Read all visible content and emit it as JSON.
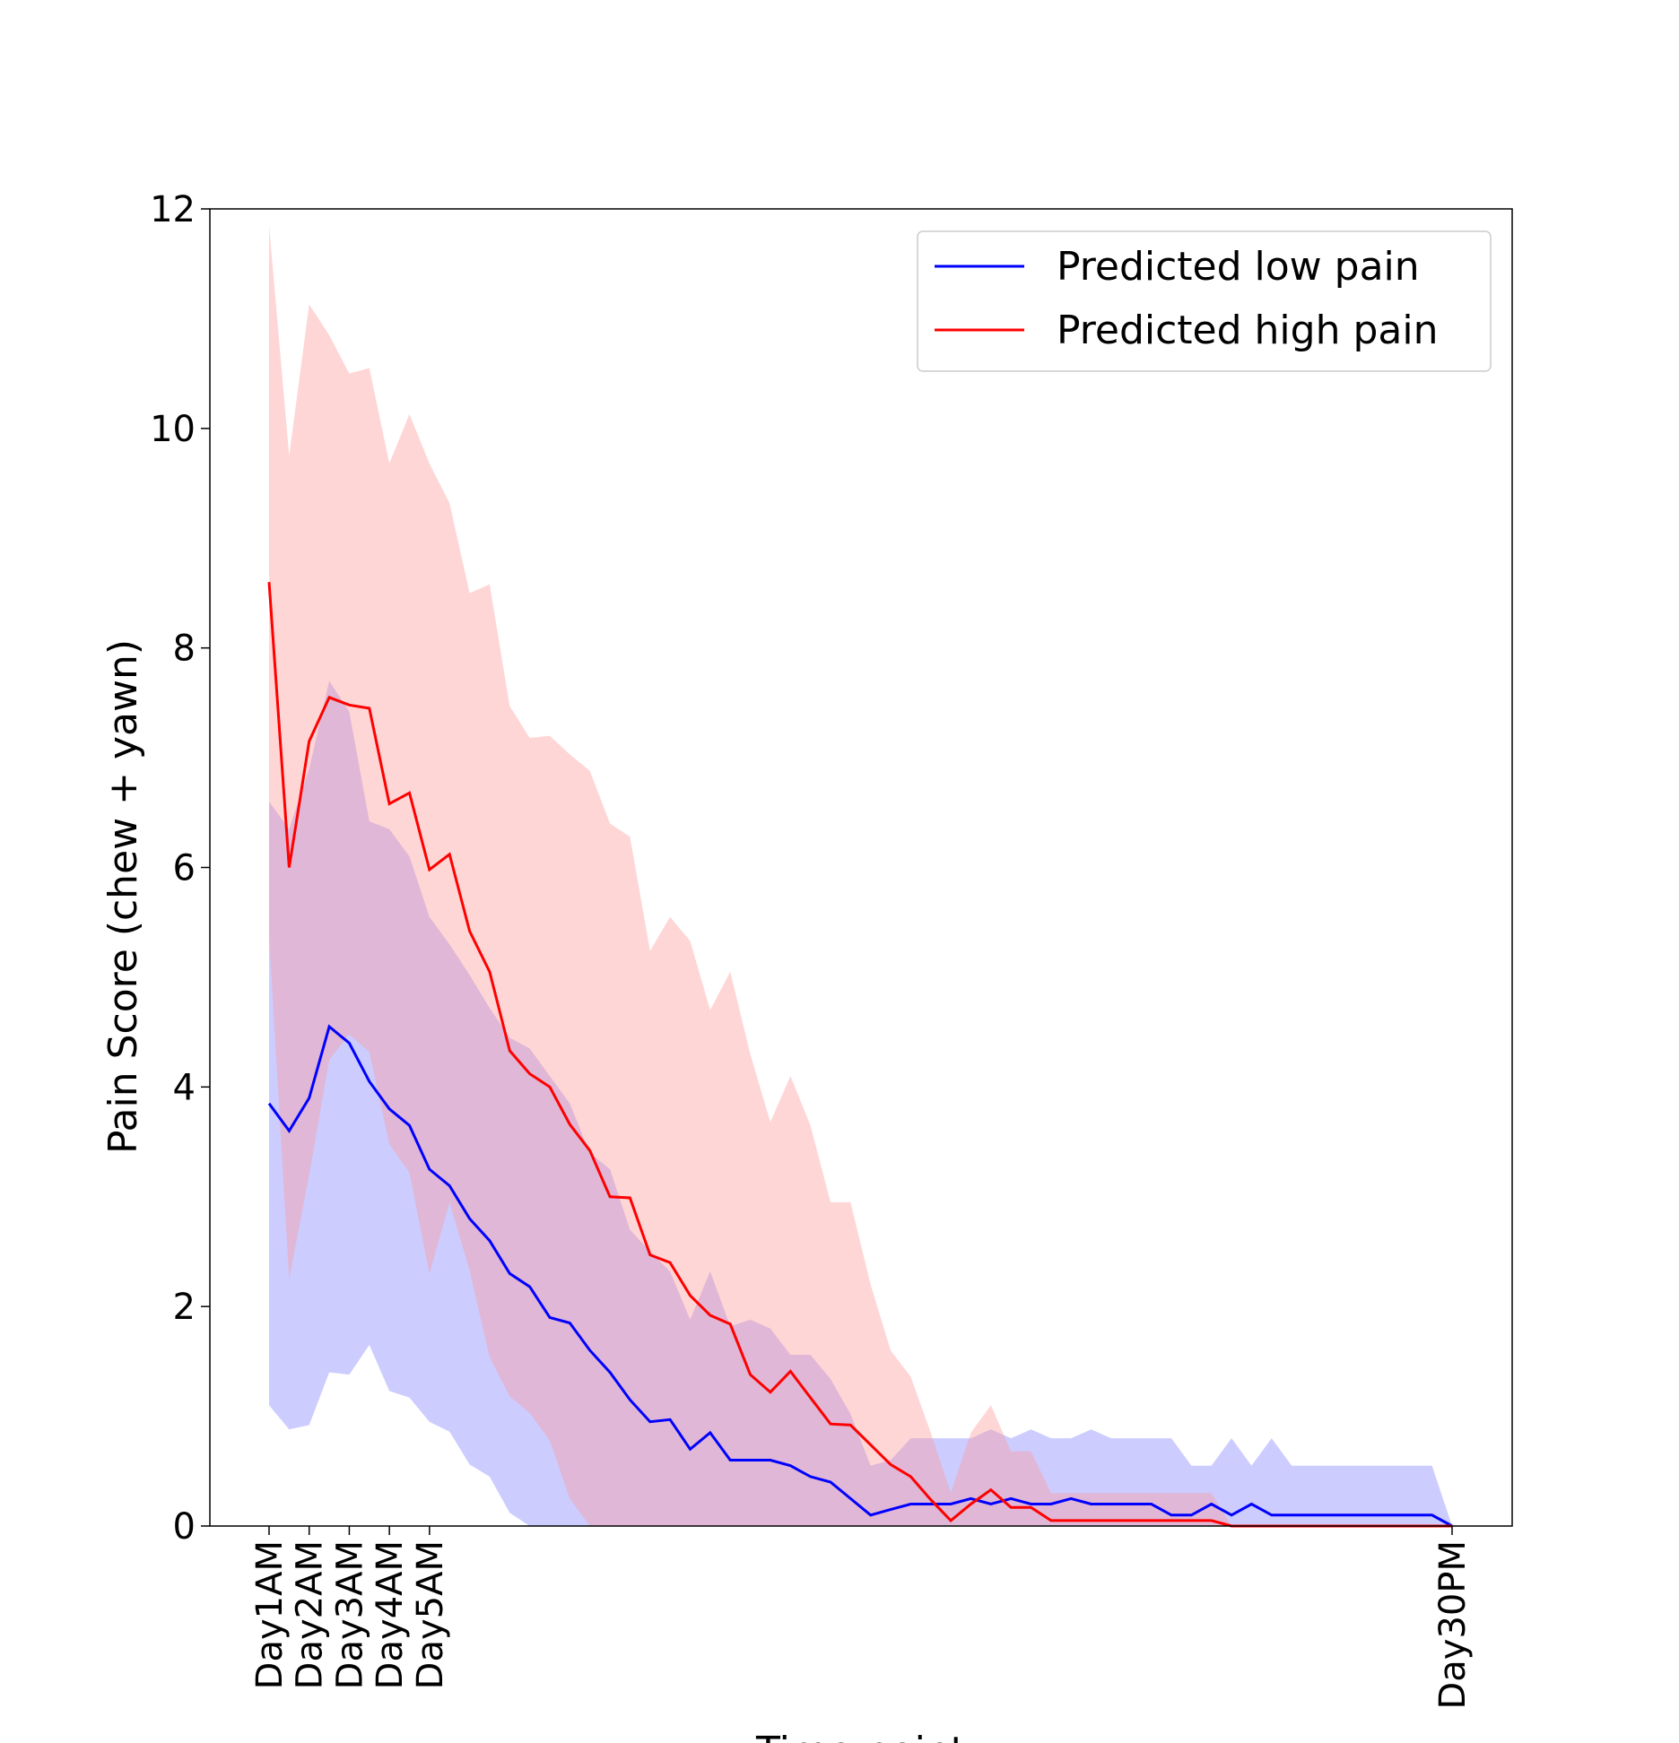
{
  "chart_data": {
    "type": "line",
    "title": "",
    "xlabel": "Time point",
    "ylabel": "Pain Score (chew + yawn)",
    "ylim": [
      0,
      12
    ],
    "yticks": [
      0,
      2,
      4,
      6,
      8,
      10,
      12
    ],
    "x_index_range": [
      0,
      59
    ],
    "xtick_positions": [
      0,
      2,
      4,
      6,
      8,
      59
    ],
    "xtick_labels": [
      "Day1AM",
      "Day2AM",
      "Day3AM",
      "Day4AM",
      "Day5AM",
      "Day30PM"
    ],
    "legend_position": "top-right",
    "grid": false,
    "series": [
      {
        "name": "Predicted low pain",
        "color": "#0000ff",
        "band_color": "#7f7fff",
        "values": [
          3.85,
          3.6,
          3.9,
          4.55,
          4.4,
          4.05,
          3.8,
          3.65,
          3.25,
          3.1,
          2.8,
          2.6,
          2.3,
          2.18,
          1.9,
          1.85,
          1.6,
          1.4,
          1.15,
          0.95,
          0.97,
          0.7,
          0.85,
          0.6,
          0.6,
          0.6,
          0.55,
          0.45,
          0.4,
          0.25,
          0.1,
          0.15,
          0.2,
          0.2,
          0.2,
          0.25,
          0.2,
          0.25,
          0.2,
          0.2,
          0.25,
          0.2,
          0.2,
          0.2,
          0.2,
          0.1,
          0.1,
          0.2,
          0.1,
          0.2,
          0.1,
          0.1,
          0.1,
          0.1,
          0.1,
          0.1,
          0.1,
          0.1,
          0.1,
          0.0
        ],
        "lower": [
          1.1,
          0.88,
          0.92,
          1.4,
          1.38,
          1.65,
          1.23,
          1.17,
          0.95,
          0.86,
          0.56,
          0.45,
          0.12,
          0.0,
          0.0,
          0.0,
          0.0,
          0.0,
          0.0,
          0.0,
          0.0,
          0.0,
          0.0,
          0.0,
          0.0,
          0.0,
          0.0,
          0.0,
          0.0,
          0.0,
          0.0,
          0.0,
          0.0,
          0.0,
          0.0,
          0.0,
          0.0,
          0.0,
          0.0,
          0.0,
          0.0,
          0.0,
          0.0,
          0.0,
          0.0,
          0.0,
          0.0,
          0.0,
          0.0,
          0.0,
          0.0,
          0.0,
          0.0,
          0.0,
          0.0,
          0.0,
          0.0,
          0.0,
          0.0,
          0.0
        ],
        "upper": [
          6.6,
          6.35,
          6.9,
          7.7,
          7.42,
          6.42,
          6.35,
          6.1,
          5.55,
          5.3,
          5.02,
          4.72,
          4.45,
          4.35,
          4.1,
          3.85,
          3.4,
          3.25,
          2.7,
          2.5,
          2.32,
          1.88,
          2.32,
          1.82,
          1.88,
          1.8,
          1.56,
          1.56,
          1.34,
          1.02,
          0.55,
          0.6,
          0.8,
          0.8,
          0.8,
          0.8,
          0.88,
          0.8,
          0.88,
          0.8,
          0.8,
          0.88,
          0.8,
          0.8,
          0.8,
          0.8,
          0.55,
          0.55,
          0.8,
          0.55,
          0.8,
          0.55,
          0.55,
          0.55,
          0.55,
          0.55,
          0.55,
          0.55,
          0.55,
          0.0
        ]
      },
      {
        "name": "Predicted high pain",
        "color": "#ff0000",
        "band_color": "#ff9999",
        "values": [
          8.6,
          6.0,
          7.15,
          7.55,
          7.48,
          7.45,
          6.58,
          6.68,
          5.98,
          6.12,
          5.42,
          5.05,
          4.33,
          4.12,
          4.0,
          3.66,
          3.42,
          3.0,
          2.99,
          2.47,
          2.4,
          2.1,
          1.92,
          1.84,
          1.38,
          1.22,
          1.41,
          1.17,
          0.93,
          0.92,
          0.74,
          0.56,
          0.45,
          0.24,
          0.05,
          0.2,
          0.33,
          0.17,
          0.17,
          0.05,
          0.05,
          0.05,
          0.05,
          0.05,
          0.05,
          0.05,
          0.05,
          0.05,
          0.0,
          0.0,
          0.0,
          0.0,
          0.0,
          0.0,
          0.0,
          0.0,
          0.0,
          0.0,
          0.0,
          0.0
        ],
        "lower": [
          5.38,
          2.25,
          3.2,
          4.25,
          4.48,
          4.32,
          3.48,
          3.22,
          2.3,
          2.95,
          2.33,
          1.54,
          1.18,
          1.03,
          0.78,
          0.25,
          0.0,
          0.0,
          0.0,
          0.0,
          0.0,
          0.0,
          0.0,
          0.0,
          0.0,
          0.0,
          0.0,
          0.0,
          0.0,
          0.0,
          0.0,
          0.0,
          0.0,
          0.0,
          0.0,
          0.0,
          0.0,
          0.0,
          0.0,
          0.0,
          0.0,
          0.0,
          0.0,
          0.0,
          0.0,
          0.0,
          0.0,
          0.0,
          0.0,
          0.0,
          0.0,
          0.0,
          0.0,
          0.0,
          0.0,
          0.0,
          0.0,
          0.0,
          0.0,
          0.0
        ],
        "upper": [
          11.85,
          9.75,
          11.13,
          10.85,
          10.5,
          10.55,
          9.68,
          10.13,
          9.68,
          9.32,
          8.5,
          8.58,
          7.47,
          7.18,
          7.2,
          7.03,
          6.88,
          6.4,
          6.28,
          5.24,
          5.55,
          5.33,
          4.7,
          5.05,
          4.3,
          3.68,
          4.1,
          3.65,
          2.95,
          2.95,
          2.2,
          1.6,
          1.36,
          0.85,
          0.3,
          0.85,
          1.1,
          0.68,
          0.68,
          0.3,
          0.3,
          0.3,
          0.3,
          0.3,
          0.3,
          0.3,
          0.3,
          0.3,
          0.0,
          0.0,
          0.0,
          0.0,
          0.0,
          0.0,
          0.0,
          0.0,
          0.0,
          0.0,
          0.0,
          0.0
        ]
      }
    ]
  }
}
